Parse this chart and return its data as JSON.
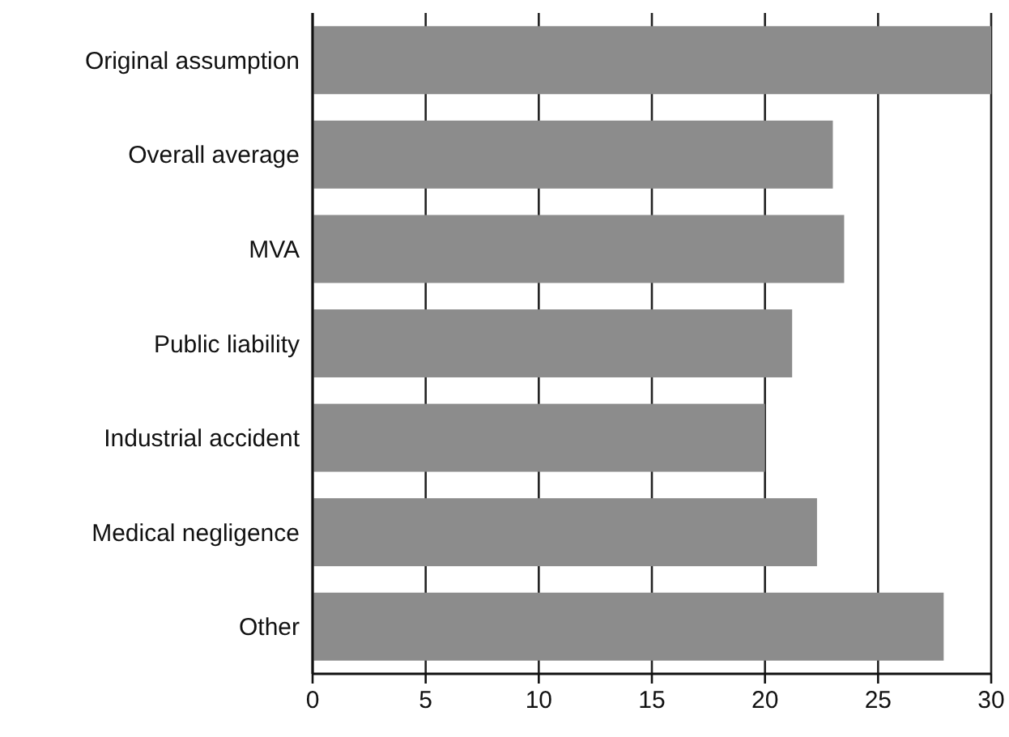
{
  "chart_data": {
    "type": "bar",
    "orientation": "horizontal",
    "categories": [
      "Original assumption",
      "Overall average",
      "MVA",
      "Public liability",
      "Industrial accident",
      "Medical negligence",
      "Other"
    ],
    "values": [
      30,
      23,
      23.5,
      21.2,
      20,
      22.3,
      27.9
    ],
    "color": "#8c8c8c",
    "xlim": [
      0,
      30
    ],
    "xticks": [
      0,
      5,
      10,
      15,
      20,
      25,
      30
    ],
    "grid": "x"
  }
}
